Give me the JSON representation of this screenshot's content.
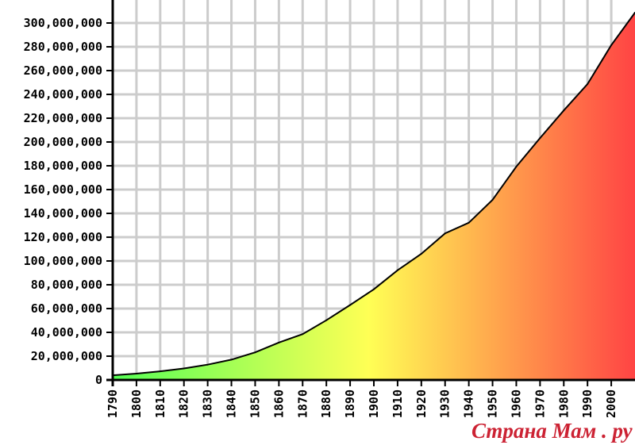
{
  "chart_data": {
    "type": "area",
    "title": "",
    "xlabel": "",
    "ylabel": "",
    "x": [
      1790,
      1800,
      1810,
      1820,
      1830,
      1840,
      1850,
      1860,
      1870,
      1880,
      1890,
      1900,
      1910,
      1920,
      1930,
      1940,
      1950,
      1960,
      1970,
      1980,
      1990,
      2000,
      2010
    ],
    "series": [
      {
        "values": [
          3929214,
          5308483,
          7239881,
          9638453,
          12866020,
          17069453,
          23191876,
          31443321,
          38558371,
          50189209,
          62979766,
          76212168,
          92228496,
          106021537,
          123202624,
          132164569,
          151325798,
          179323175,
          203302031,
          226542199,
          248709873,
          281421906,
          308745538
        ]
      }
    ],
    "xlim": [
      1790,
      2010
    ],
    "ylim": [
      0,
      300000000
    ],
    "ytick_labels": [
      "0",
      "20,000,000",
      "40,000,000",
      "60,000,000",
      "80,000,000",
      "100,000,000",
      "120,000,000",
      "140,000,000",
      "160,000,000",
      "180,000,000",
      "200,000,000",
      "220,000,000",
      "240,000,000",
      "260,000,000",
      "280,000,000",
      "300,000,000"
    ],
    "xtick_labels": [
      "1790",
      "1800",
      "1810",
      "1820",
      "1830",
      "1840",
      "1850",
      "1860",
      "1870",
      "1880",
      "1890",
      "1900",
      "1910",
      "1920",
      "1930",
      "1940",
      "1950",
      "1960",
      "1970",
      "1980",
      "1990",
      "2000"
    ],
    "grid": true,
    "fill_gradient": [
      "#55ff55",
      "#ffff55",
      "#ff4444"
    ],
    "line_color": "#000000",
    "grid_color": "#cccccc"
  },
  "watermark": {
    "text": "Страна Мам . ру",
    "color": "#cc2233"
  }
}
